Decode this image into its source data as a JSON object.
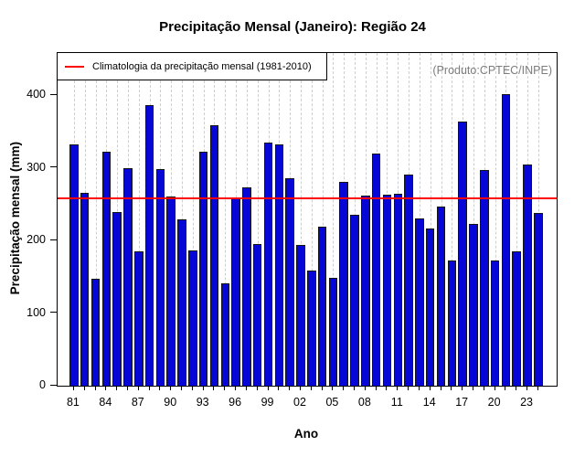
{
  "title": "Precipitação Mensal (Janeiro): Região 24",
  "legend_label": "Climatologia da precipitação mensal (1981-2010)",
  "watermark": "(Produto:CPTEC/INPE)",
  "x_axis_label": "Ano",
  "y_axis_label": "Precipitação mensal (mm)",
  "chart_data": {
    "type": "bar",
    "title": "Precipitação Mensal (Janeiro): Região 24",
    "xlabel": "Ano",
    "ylabel": "Precipitação mensal (mm)",
    "years": [
      1981,
      1982,
      1983,
      1984,
      1985,
      1986,
      1987,
      1988,
      1989,
      1990,
      1991,
      1992,
      1993,
      1994,
      1995,
      1996,
      1997,
      1998,
      1999,
      2000,
      2001,
      2002,
      2003,
      2004,
      2005,
      2006,
      2007,
      2008,
      2009,
      2010,
      2011,
      2012,
      2013,
      2014,
      2015,
      2016,
      2017,
      2018,
      2019,
      2020,
      2021,
      2022,
      2023,
      2024
    ],
    "values": [
      332,
      265,
      147,
      322,
      239,
      299,
      185,
      386,
      298,
      260,
      229,
      186,
      322,
      358,
      141,
      259,
      273,
      195,
      335,
      332,
      286,
      194,
      158,
      219,
      149,
      280,
      235,
      262,
      319,
      263,
      264,
      291,
      230,
      217,
      246,
      172,
      364,
      223,
      297,
      172,
      402,
      185,
      304,
      238
    ],
    "xtick_labels": [
      "81",
      "84",
      "87",
      "90",
      "93",
      "96",
      "99",
      "02",
      "05",
      "08",
      "11",
      "14",
      "17",
      "20",
      "23"
    ],
    "xtick_label_step": 3,
    "yticks": [
      0,
      100,
      200,
      300,
      400
    ],
    "ylim": [
      0,
      458
    ],
    "grid": "vertical-dashed",
    "legend_position": "top-left",
    "annotation": "(Produto:CPTEC/INPE)",
    "bar_color": "#0606d6",
    "bar_border_color": "#141414",
    "climatology": {
      "value": 258,
      "label": "Climatologia da precipitação mensal (1981-2010)",
      "color": "#ff0000"
    }
  }
}
